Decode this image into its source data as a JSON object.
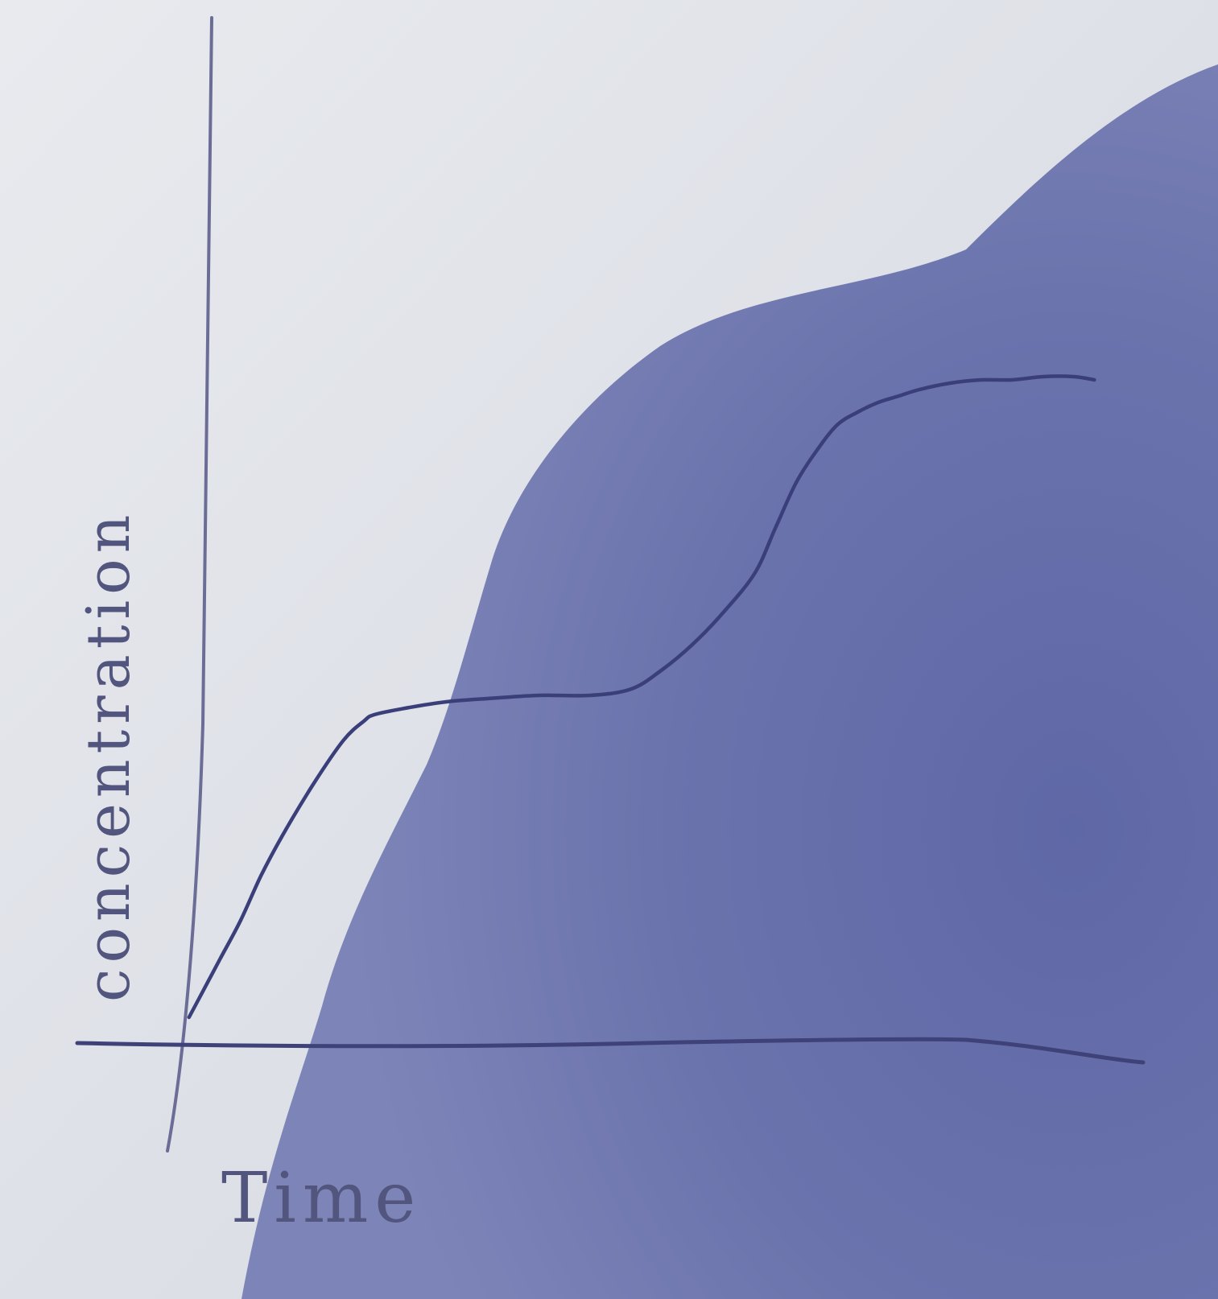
{
  "chart_data": {
    "type": "line",
    "xlabel": "Time",
    "ylabel": "concentration",
    "xlim": [
      0,
      100
    ],
    "ylim": [
      0,
      100
    ],
    "grid": false,
    "series": [
      {
        "x": [
          1,
          2,
          4,
          6,
          8,
          10,
          13,
          16,
          18,
          19,
          22,
          26,
          30,
          35,
          40,
          44,
          47,
          50,
          53,
          56,
          58,
          60,
          62,
          64,
          66,
          68,
          70,
          72,
          75,
          78,
          81,
          84,
          87,
          89
        ],
        "values": [
          2,
          5,
          11,
          17,
          24,
          30,
          38,
          45,
          48,
          49,
          50,
          51,
          51.5,
          52,
          52,
          53,
          56,
          60,
          65,
          71,
          78,
          85,
          90,
          94,
          96,
          97.5,
          98.5,
          99.5,
          100.5,
          101,
          101,
          101.5,
          101.5,
          101
        ]
      }
    ]
  },
  "colors": {
    "paper": "#dfe1e8",
    "shadow": "#6c74ad",
    "ink": "#3a3f7a"
  }
}
